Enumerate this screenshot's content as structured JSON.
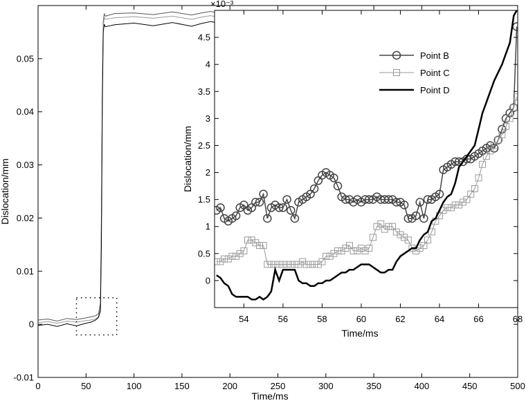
{
  "chart_data": [
    {
      "type": "line",
      "title": "",
      "xlabel": "Time/ms",
      "ylabel": "Dislocation/mm",
      "xlim": [
        0,
        500
      ],
      "ylim": [
        -0.01,
        0.06
      ],
      "xticks": [
        0,
        50,
        100,
        150,
        200,
        250,
        300,
        350,
        400,
        450,
        500
      ],
      "xtick_labels": [
        "0",
        "50",
        "100",
        "150",
        "200",
        "250",
        "300",
        "350",
        "400",
        "450",
        "500"
      ],
      "yticks": [
        -0.01,
        0,
        0.01,
        0.02,
        0.03,
        0.04,
        0.05
      ],
      "ytick_labels": [
        "-0.01",
        "0",
        "0.01",
        "0.02",
        "0.03",
        "0.04",
        "0.05"
      ],
      "grid": false,
      "zoom_box": {
        "x": [
          40,
          82
        ],
        "y": [
          -0.002,
          0.005
        ]
      },
      "series": [
        {
          "name": "Point B",
          "color": "#555555",
          "x": [
            0,
            10,
            20,
            30,
            40,
            50,
            55,
            60,
            63,
            65,
            66,
            67,
            68,
            69,
            70,
            80,
            100,
            120,
            140,
            160,
            170,
            180,
            185
          ],
          "y": [
            0.0008,
            0.001,
            0.0006,
            0.0011,
            0.0009,
            0.0012,
            0.0014,
            0.0016,
            0.002,
            0.004,
            0.02,
            0.045,
            0.057,
            0.0585,
            0.058,
            0.0585,
            0.0586,
            0.0583,
            0.0588,
            0.0582,
            0.0586,
            0.0589,
            0.0587
          ]
        },
        {
          "name": "Point C",
          "color": "#999999",
          "x": [
            0,
            10,
            20,
            30,
            40,
            50,
            55,
            60,
            63,
            65,
            66,
            67,
            68,
            69,
            70,
            80,
            100,
            120,
            140,
            160,
            170,
            180,
            185
          ],
          "y": [
            0.0003,
            0.0005,
            0.0002,
            0.0006,
            0.0004,
            0.0007,
            0.0008,
            0.001,
            0.0015,
            0.003,
            0.018,
            0.044,
            0.056,
            0.0578,
            0.0574,
            0.0577,
            0.0579,
            0.0576,
            0.058,
            0.0574,
            0.0578,
            0.0581,
            0.0579
          ]
        },
        {
          "name": "Point D",
          "color": "#000000",
          "x": [
            0,
            10,
            20,
            30,
            40,
            50,
            55,
            60,
            63,
            65,
            66,
            67,
            68,
            69,
            70,
            80,
            100,
            120,
            140,
            160,
            170,
            180,
            185
          ],
          "y": [
            -0.0002,
            0.0,
            -0.0004,
            0.0001,
            -0.0003,
            0.0002,
            0.0004,
            0.0008,
            0.0013,
            0.0025,
            0.015,
            0.042,
            0.055,
            0.0565,
            0.056,
            0.0564,
            0.0567,
            0.0562,
            0.0568,
            0.0561,
            0.0566,
            0.057,
            0.0568
          ]
        }
      ]
    },
    {
      "type": "line",
      "title": "",
      "xlabel": "Time/ms",
      "ylabel": "Dislocation/mm",
      "y_scale_label": "×10⁻³",
      "xlim": [
        52.5,
        68
      ],
      "ylim": [
        -0.5,
        5
      ],
      "xticks": [
        54,
        56,
        58,
        60,
        62,
        64,
        66,
        68
      ],
      "xtick_labels": [
        "54",
        "56",
        "58",
        "60",
        "62",
        "64",
        "66",
        "68"
      ],
      "yticks": [
        0,
        0.5,
        1,
        1.5,
        2,
        2.5,
        3,
        3.5,
        4,
        4.5
      ],
      "ytick_labels": [
        "0",
        "0.5",
        "1",
        "1.5",
        "2",
        "2.5",
        "3",
        "3.5",
        "4",
        "4.5"
      ],
      "grid": false,
      "legend_position": "top-right",
      "series": [
        {
          "name": "Point B",
          "color": "#444444",
          "marker": "circle",
          "x": [
            52.6,
            52.8,
            53.0,
            53.2,
            53.4,
            53.6,
            53.8,
            54.0,
            54.2,
            54.4,
            54.6,
            54.8,
            55.0,
            55.2,
            55.4,
            55.6,
            55.8,
            56.0,
            56.2,
            56.4,
            56.6,
            56.8,
            57.0,
            57.2,
            57.4,
            57.6,
            57.8,
            58.0,
            58.2,
            58.4,
            58.6,
            58.8,
            59.0,
            59.2,
            59.4,
            59.6,
            59.8,
            60.0,
            60.2,
            60.4,
            60.6,
            60.8,
            61.0,
            61.2,
            61.4,
            61.6,
            61.8,
            62.0,
            62.2,
            62.4,
            62.6,
            62.8,
            63.0,
            63.2,
            63.4,
            63.6,
            63.8,
            64.0,
            64.2,
            64.4,
            64.6,
            64.8,
            65.0,
            65.2,
            65.4,
            65.6,
            65.8,
            66.0,
            66.2,
            66.4,
            66.6,
            66.8,
            67.0,
            67.2,
            67.4,
            67.6,
            67.8,
            67.95
          ],
          "y": [
            1.3,
            1.35,
            1.15,
            1.1,
            1.15,
            1.2,
            1.35,
            1.4,
            1.3,
            1.35,
            1.45,
            1.45,
            1.6,
            1.15,
            1.35,
            1.4,
            1.35,
            1.35,
            1.5,
            1.3,
            1.15,
            1.45,
            1.5,
            1.55,
            1.6,
            1.7,
            1.85,
            1.95,
            2.0,
            1.95,
            1.9,
            1.75,
            1.55,
            1.5,
            1.5,
            1.45,
            1.5,
            1.45,
            1.5,
            1.5,
            1.5,
            1.55,
            1.5,
            1.5,
            1.5,
            1.5,
            1.45,
            1.45,
            1.4,
            1.15,
            1.15,
            1.2,
            1.45,
            1.15,
            1.5,
            1.5,
            1.55,
            1.6,
            2.05,
            2.1,
            2.15,
            2.2,
            2.2,
            2.2,
            2.25,
            2.25,
            2.3,
            2.35,
            2.4,
            2.45,
            2.5,
            2.45,
            2.6,
            2.8,
            3.0,
            3.1,
            3.2,
            4.7
          ]
        },
        {
          "name": "Point C",
          "color": "#999999",
          "marker": "square",
          "x": [
            52.6,
            52.8,
            53.0,
            53.2,
            53.4,
            53.6,
            53.8,
            54.0,
            54.2,
            54.4,
            54.6,
            54.8,
            55.0,
            55.2,
            55.4,
            55.6,
            55.8,
            56.0,
            56.2,
            56.4,
            56.6,
            56.8,
            57.0,
            57.2,
            57.4,
            57.6,
            57.8,
            58.0,
            58.2,
            58.4,
            58.6,
            58.8,
            59.0,
            59.2,
            59.4,
            59.6,
            59.8,
            60.0,
            60.2,
            60.4,
            60.6,
            60.8,
            61.0,
            61.2,
            61.4,
            61.6,
            61.8,
            62.0,
            62.2,
            62.4,
            62.6,
            62.8,
            63.0,
            63.2,
            63.4,
            63.6,
            63.8,
            64.0,
            64.2,
            64.4,
            64.6,
            64.8,
            65.0,
            65.2,
            65.4,
            65.6,
            65.8,
            66.0,
            66.2,
            66.4,
            66.6,
            66.8,
            67.0,
            67.2,
            67.4,
            67.6,
            67.8,
            67.95
          ],
          "y": [
            0.35,
            0.35,
            0.4,
            0.4,
            0.45,
            0.45,
            0.5,
            0.55,
            0.75,
            0.75,
            0.7,
            0.65,
            0.65,
            0.3,
            0.3,
            0.3,
            0.3,
            0.3,
            0.3,
            0.3,
            0.3,
            0.3,
            0.35,
            0.3,
            0.3,
            0.3,
            0.3,
            0.35,
            0.45,
            0.45,
            0.5,
            0.55,
            0.55,
            0.6,
            0.65,
            0.55,
            0.55,
            0.6,
            0.55,
            0.6,
            0.8,
            1.0,
            1.05,
            0.95,
            1.0,
            1.0,
            0.9,
            0.85,
            0.8,
            0.75,
            0.6,
            0.55,
            0.6,
            0.65,
            0.75,
            0.9,
            1.1,
            1.2,
            1.3,
            1.35,
            1.35,
            1.4,
            1.4,
            1.45,
            1.5,
            1.6,
            1.7,
            1.9,
            2.15,
            2.3,
            2.4,
            2.5,
            2.6,
            2.7,
            2.85,
            3.0,
            3.2,
            3.4
          ]
        },
        {
          "name": "Point D",
          "color": "#000000",
          "marker": "none",
          "x": [
            52.6,
            52.8,
            53.0,
            53.2,
            53.4,
            53.6,
            53.8,
            54.0,
            54.2,
            54.4,
            54.6,
            54.8,
            55.0,
            55.2,
            55.4,
            55.6,
            55.8,
            56.0,
            56.2,
            56.4,
            56.6,
            56.8,
            57.0,
            57.2,
            57.4,
            57.6,
            57.8,
            58.0,
            58.2,
            58.4,
            58.6,
            58.8,
            59.0,
            59.2,
            59.4,
            59.6,
            59.8,
            60.0,
            60.2,
            60.4,
            60.6,
            60.8,
            61.0,
            61.2,
            61.4,
            61.6,
            61.8,
            62.0,
            62.2,
            62.4,
            62.6,
            62.8,
            63.0,
            63.2,
            63.4,
            63.6,
            63.8,
            64.0,
            64.2,
            64.4,
            64.6,
            64.8,
            65.0,
            65.2,
            65.4,
            65.6,
            65.8,
            66.0,
            66.2,
            66.4,
            66.6,
            66.8,
            67.0,
            67.2,
            67.4,
            67.6,
            67.8,
            67.95
          ],
          "y": [
            0.1,
            0.05,
            -0.05,
            -0.1,
            -0.25,
            -0.3,
            -0.3,
            -0.3,
            -0.3,
            -0.35,
            -0.35,
            -0.3,
            -0.35,
            -0.3,
            -0.2,
            0.2,
            0.0,
            0.2,
            0.2,
            0.2,
            0.2,
            0.0,
            -0.05,
            -0.05,
            -0.1,
            -0.1,
            -0.05,
            -0.05,
            0.0,
            0.0,
            0.05,
            0.1,
            0.15,
            0.15,
            0.2,
            0.2,
            0.25,
            0.3,
            0.3,
            0.3,
            0.25,
            0.2,
            0.15,
            0.15,
            0.2,
            0.2,
            0.35,
            0.45,
            0.5,
            0.55,
            0.6,
            0.6,
            0.75,
            0.85,
            0.9,
            1.1,
            1.15,
            1.3,
            1.45,
            1.55,
            1.6,
            1.8,
            2.1,
            2.2,
            2.3,
            2.4,
            2.5,
            2.8,
            3.1,
            3.3,
            3.5,
            3.7,
            3.85,
            4.0,
            4.2,
            4.4,
            4.9,
            5.0
          ]
        }
      ]
    }
  ]
}
